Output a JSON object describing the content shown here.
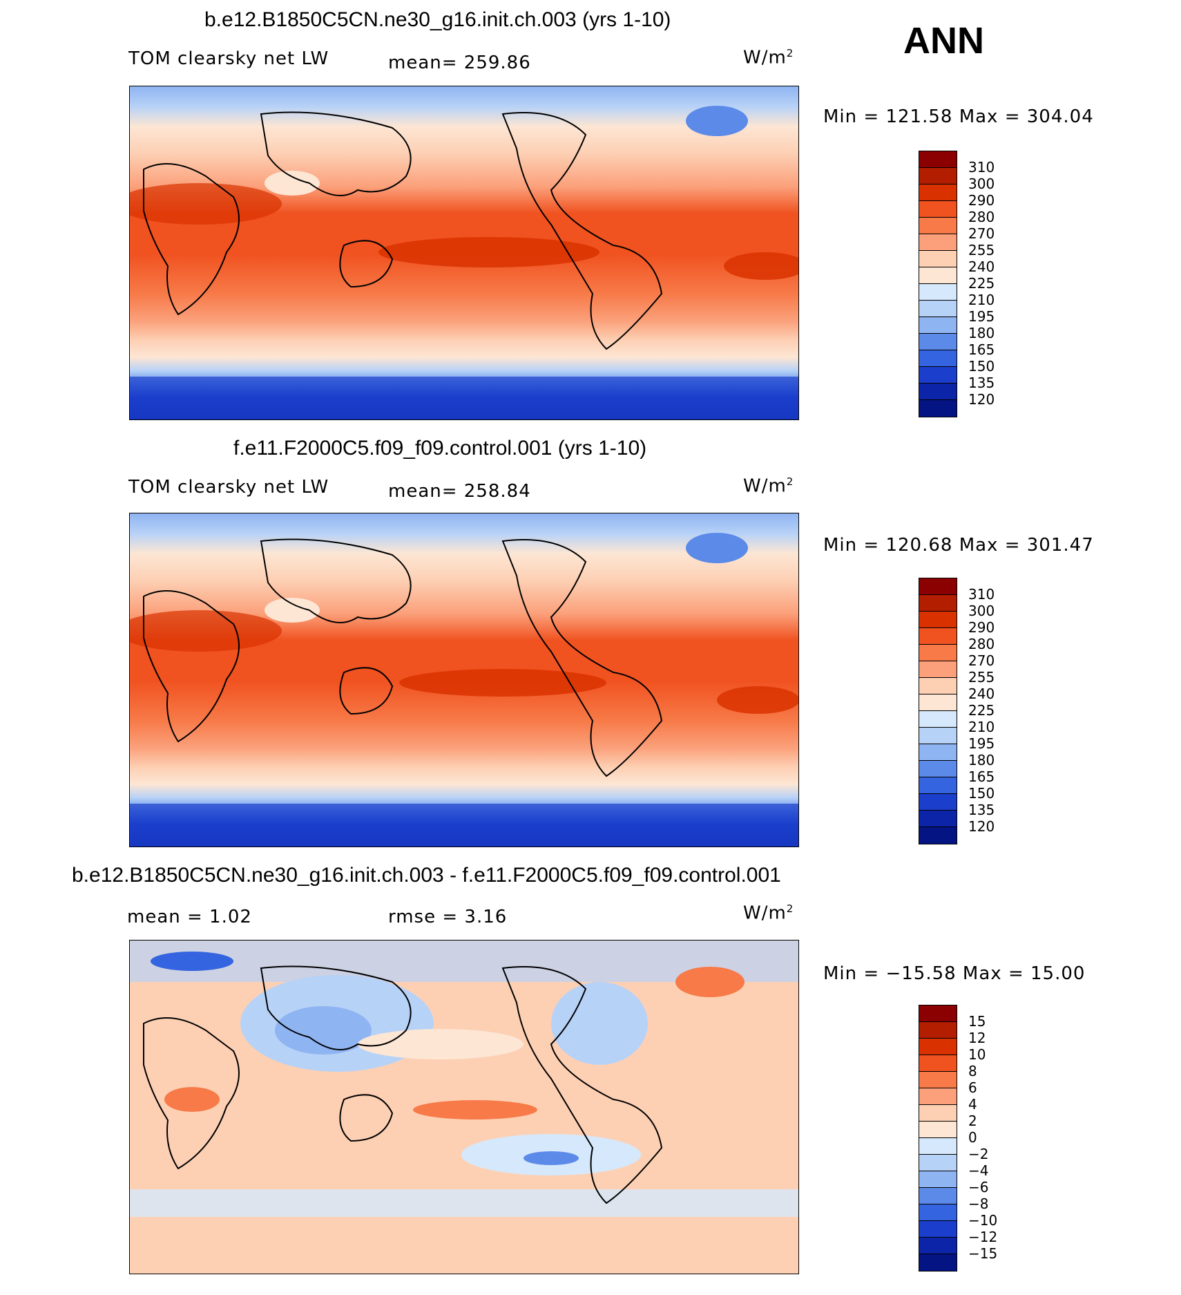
{
  "season": "ANN",
  "units_base": "W/m",
  "units_exp": "2",
  "panels": [
    {
      "title": "b.e12.B1850C5CN.ne30_g16.init.ch.003 (yrs 1-10)",
      "variable": "TOM clearsky net LW",
      "stat": "mean=  259.86",
      "minmax": "Min  =  121.58  Max  =  304.04",
      "colors": [
        "#8b0000",
        "#b31e00",
        "#d93200",
        "#f05220",
        "#f77a48",
        "#fba07a",
        "#fdd0b4",
        "#fde6d4",
        "#d6e8fb",
        "#b7d2f7",
        "#8fb4f2",
        "#5c8ae8",
        "#3464e0",
        "#1b3fcc",
        "#0c25a8",
        "#041483"
      ],
      "levels": [
        "310",
        "300",
        "290",
        "280",
        "270",
        "255",
        "240",
        "225",
        "210",
        "195",
        "180",
        "165",
        "150",
        "135",
        "120"
      ]
    },
    {
      "title": "f.e11.F2000C5.f09_f09.control.001 (yrs 1-10)",
      "variable": "TOM clearsky net LW",
      "stat": "mean=  258.84",
      "minmax": "Min  =  120.68  Max  =  301.47",
      "colors": [
        "#8b0000",
        "#b31e00",
        "#d93200",
        "#f05220",
        "#f77a48",
        "#fba07a",
        "#fdd0b4",
        "#fde6d4",
        "#d6e8fb",
        "#b7d2f7",
        "#8fb4f2",
        "#5c8ae8",
        "#3464e0",
        "#1b3fcc",
        "#0c25a8",
        "#041483"
      ],
      "levels": [
        "310",
        "300",
        "290",
        "280",
        "270",
        "255",
        "240",
        "225",
        "210",
        "195",
        "180",
        "165",
        "150",
        "135",
        "120"
      ]
    },
    {
      "title": "b.e12.B1850C5CN.ne30_g16.init.ch.003 - f.e11.F2000C5.f09_f09.control.001",
      "mean_label": "mean  =     1.02",
      "rmse_label": "rmse  =     3.16",
      "minmax": "Min  =  −15.58  Max  =     15.00",
      "colors": [
        "#8b0000",
        "#b31e00",
        "#d93200",
        "#f05220",
        "#f77a48",
        "#fba07a",
        "#fdd0b4",
        "#fde6d4",
        "#d6e8fb",
        "#b7d2f7",
        "#8fb4f2",
        "#5c8ae8",
        "#3464e0",
        "#1b3fcc",
        "#0c25a8",
        "#041483"
      ],
      "levels": [
        "15",
        "12",
        "10",
        "8",
        "6",
        "4",
        "2",
        "0",
        "−2",
        "−4",
        "−6",
        "−8",
        "−10",
        "−12",
        "−15"
      ]
    }
  ]
}
